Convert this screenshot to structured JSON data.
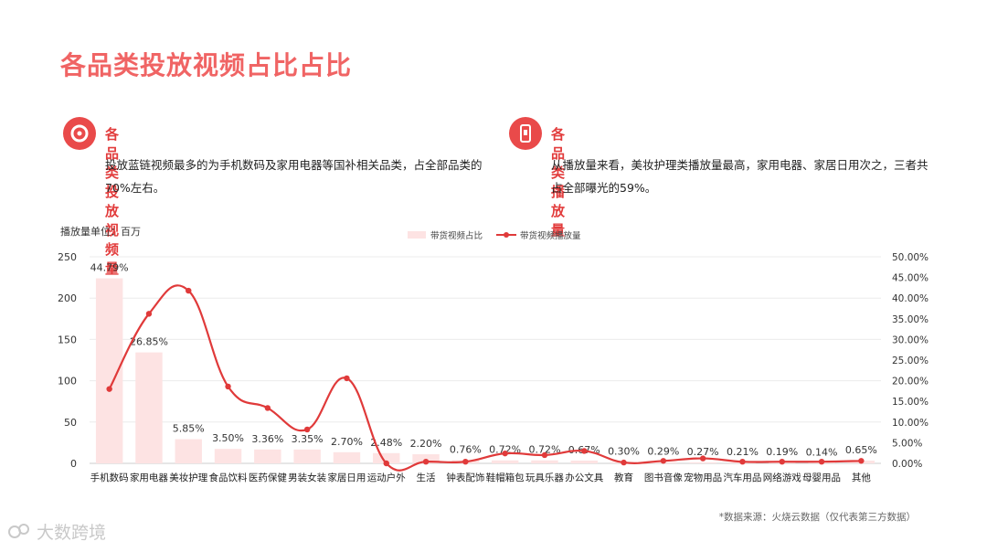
{
  "page": {
    "title": "各品类投放视频占比占比",
    "unit_label": "播放量单位：百万",
    "source": "*数据来源：火烧云数据（仅代表第三方数据）",
    "watermark": "大数跨境"
  },
  "sections": [
    {
      "icon": "target-icon",
      "heading": "各品类投放视频量",
      "body": "投放蓝链视频最多的为手机数码及家用电器等国补相关品类，占全部品类的70%左右。"
    },
    {
      "icon": "phone-icon",
      "heading": "各品类播放量",
      "body": "从播放量来看，美妆护理类播放量最高，家用电器、家居日用次之，三者共占全部曝光的59%。"
    }
  ],
  "colors": {
    "accent": "#f06464",
    "heading": "#e23c3c",
    "bar": "#fde3e3",
    "line": "#e03a3a"
  },
  "chart_data": {
    "type": "bar",
    "categories": [
      "手机数码",
      "家用电器",
      "美妆护理",
      "食品饮料",
      "医药保健",
      "男装女装",
      "家居日用",
      "运动户外",
      "生活",
      "钟表配饰",
      "鞋帽箱包",
      "玩具乐器",
      "办公文具",
      "教育",
      "图书音像",
      "宠物用品",
      "汽车用品",
      "网络游戏",
      "母婴用品",
      "其他"
    ],
    "legend": [
      "带货视频占比",
      "带货视频播放量"
    ],
    "legend_position": "top-center",
    "y_left": {
      "range": [
        0,
        250
      ],
      "ticks": [
        "0",
        "50",
        "100",
        "150",
        "200",
        "250"
      ]
    },
    "y_right": {
      "range": [
        0,
        50
      ],
      "ticks": [
        "0.00%",
        "5.00%",
        "10.00%",
        "15.00%",
        "20.00%",
        "25.00%",
        "30.00%",
        "35.00%",
        "40.00%",
        "45.00%",
        "50.00%"
      ]
    },
    "grid": true,
    "series": [
      {
        "name": "带货视频占比",
        "type": "bar",
        "axis": "right",
        "values": [
          44.79,
          26.85,
          5.85,
          3.5,
          3.36,
          3.35,
          2.7,
          2.48,
          2.2,
          0.76,
          0.72,
          0.72,
          0.67,
          0.3,
          0.29,
          0.27,
          0.21,
          0.19,
          0.14,
          0.65
        ],
        "labels": [
          "44.79%",
          "26.85%",
          "5.85%",
          "3.50%",
          "3.36%",
          "3.35%",
          "2.70%",
          "2.48%",
          "2.20%",
          "0.76%",
          "0.72%",
          "0.72%",
          "0.67%",
          "0.30%",
          "0.29%",
          "0.27%",
          "0.21%",
          "0.19%",
          "0.14%",
          "0.65%"
        ]
      },
      {
        "name": "带货视频播放量",
        "type": "line",
        "axis": "left",
        "smooth": true,
        "values": [
          90,
          181,
          209,
          93,
          67,
          41,
          103,
          0,
          2,
          2,
          12,
          10,
          15,
          1,
          3,
          6,
          2,
          2,
          2,
          3
        ]
      }
    ]
  }
}
